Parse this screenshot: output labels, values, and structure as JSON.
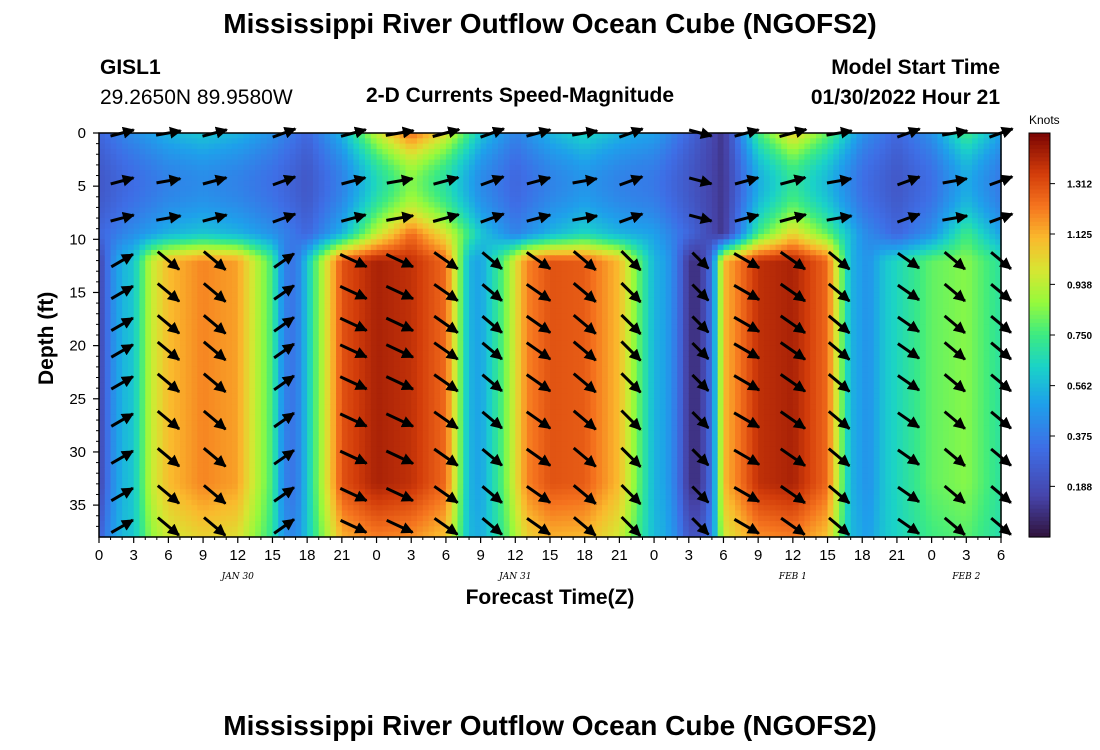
{
  "chart_data": {
    "type": "heatmap",
    "title": "Mississippi River Outflow Ocean Cube (NGOFS2)",
    "bottom_title": "Mississippi River Outflow Ocean Cube (NGOFS2)",
    "station_id": "GISL1",
    "station_coords": "29.2650N  89.9580W",
    "subtitle": "2-D Currents Speed-Magnitude",
    "model_start_label": "Model Start Time",
    "model_start_value": "01/30/2022 Hour 21",
    "xlabel": "Forecast Time(Z)",
    "ylabel": "Depth (ft)",
    "x_hours_range": [
      0,
      78
    ],
    "ylim": [
      0,
      38
    ],
    "y_reversed": true,
    "x_ticks": [
      "0",
      "3",
      "6",
      "9",
      "12",
      "15",
      "18",
      "21",
      "0",
      "3",
      "6",
      "9",
      "12",
      "15",
      "18",
      "21",
      "0",
      "3",
      "6",
      "9",
      "12",
      "15",
      "18",
      "21",
      "0",
      "3",
      "6"
    ],
    "y_ticks": [
      "0",
      "5",
      "10",
      "15",
      "20",
      "25",
      "30",
      "35"
    ],
    "y_tick_values": [
      0,
      5,
      10,
      15,
      20,
      25,
      30,
      35
    ],
    "date_labels": [
      {
        "text": "JAN 30",
        "hour": 12
      },
      {
        "text": "JAN 31",
        "hour": 36
      },
      {
        "text": "FEB 1",
        "hour": 60
      },
      {
        "text": "FEB 2",
        "hour": 75
      }
    ],
    "colorbar": {
      "unit": "Knots",
      "range": [
        0,
        1.5
      ],
      "ticks": [
        "1.312",
        "1.125",
        "0.938",
        "0.750",
        "0.562",
        "0.375",
        "0.188"
      ],
      "tick_values": [
        1.312,
        1.125,
        0.938,
        0.75,
        0.562,
        0.375,
        0.188
      ]
    },
    "speed_model": {
      "surface_depth": 9.5,
      "surface_x": [
        0,
        2,
        6,
        9,
        12,
        15,
        18,
        21,
        24,
        27,
        30,
        33,
        36,
        39,
        42,
        45,
        48,
        51,
        54,
        57,
        60,
        63,
        66,
        69,
        72,
        75,
        78
      ],
      "surface_speed": [
        0.3,
        0.4,
        0.55,
        0.6,
        0.55,
        0.45,
        0.3,
        0.55,
        0.95,
        1.25,
        1.0,
        0.6,
        0.4,
        0.55,
        0.65,
        0.55,
        0.5,
        0.3,
        0.1,
        0.75,
        1.05,
        0.8,
        0.45,
        0.3,
        0.45,
        0.75,
        0.5
      ],
      "deep_x": [
        0,
        1,
        2,
        3,
        4.5,
        6,
        9,
        12,
        15,
        16,
        17,
        19,
        21,
        24,
        27,
        30,
        32,
        33,
        35,
        37,
        39,
        42,
        45,
        48,
        49,
        50,
        51,
        52,
        53,
        54,
        57,
        60,
        63,
        64,
        65,
        66.5,
        68,
        70,
        72,
        75,
        78
      ],
      "deep_speed": [
        0.15,
        0.4,
        0.55,
        0.6,
        0.95,
        1.1,
        1.2,
        1.15,
        0.75,
        0.4,
        0.35,
        0.85,
        1.3,
        1.42,
        1.38,
        1.25,
        0.55,
        0.5,
        0.8,
        1.2,
        1.3,
        1.28,
        1.1,
        0.55,
        0.5,
        0.35,
        0.1,
        0.1,
        0.35,
        1.1,
        1.38,
        1.42,
        1.25,
        0.9,
        0.55,
        0.45,
        0.6,
        0.7,
        0.8,
        0.85,
        0.7
      ]
    },
    "vector_columns": [
      {
        "hour": 2,
        "angle_surface": -15,
        "angle_deep": -30
      },
      {
        "hour": 6,
        "angle_surface": -10,
        "angle_deep": 40
      },
      {
        "hour": 10,
        "angle_surface": -15,
        "angle_deep": 40
      },
      {
        "hour": 16,
        "angle_surface": -20,
        "angle_deep": -35
      },
      {
        "hour": 22,
        "angle_surface": -15,
        "angle_deep": 25
      },
      {
        "hour": 26,
        "angle_surface": -10,
        "angle_deep": 25
      },
      {
        "hour": 30,
        "angle_surface": -15,
        "angle_deep": 35
      },
      {
        "hour": 34,
        "angle_surface": -20,
        "angle_deep": 40
      },
      {
        "hour": 38,
        "angle_surface": -15,
        "angle_deep": 35
      },
      {
        "hour": 42,
        "angle_surface": -10,
        "angle_deep": 40
      },
      {
        "hour": 46,
        "angle_surface": -20,
        "angle_deep": 45
      },
      {
        "hour": 52,
        "angle_surface": 15,
        "angle_deep": 45
      },
      {
        "hour": 56,
        "angle_surface": -15,
        "angle_deep": 30
      },
      {
        "hour": 60,
        "angle_surface": -15,
        "angle_deep": 35
      },
      {
        "hour": 64,
        "angle_surface": -10,
        "angle_deep": 40
      },
      {
        "hour": 70,
        "angle_surface": -20,
        "angle_deep": 35
      },
      {
        "hour": 74,
        "angle_surface": -10,
        "angle_deep": 40
      },
      {
        "hour": 78,
        "angle_surface": -20,
        "angle_deep": 40
      }
    ],
    "vector_depths": [
      0,
      4.5,
      8,
      12,
      15,
      18,
      20.5,
      23.5,
      27,
      30.5,
      34,
      37
    ]
  }
}
